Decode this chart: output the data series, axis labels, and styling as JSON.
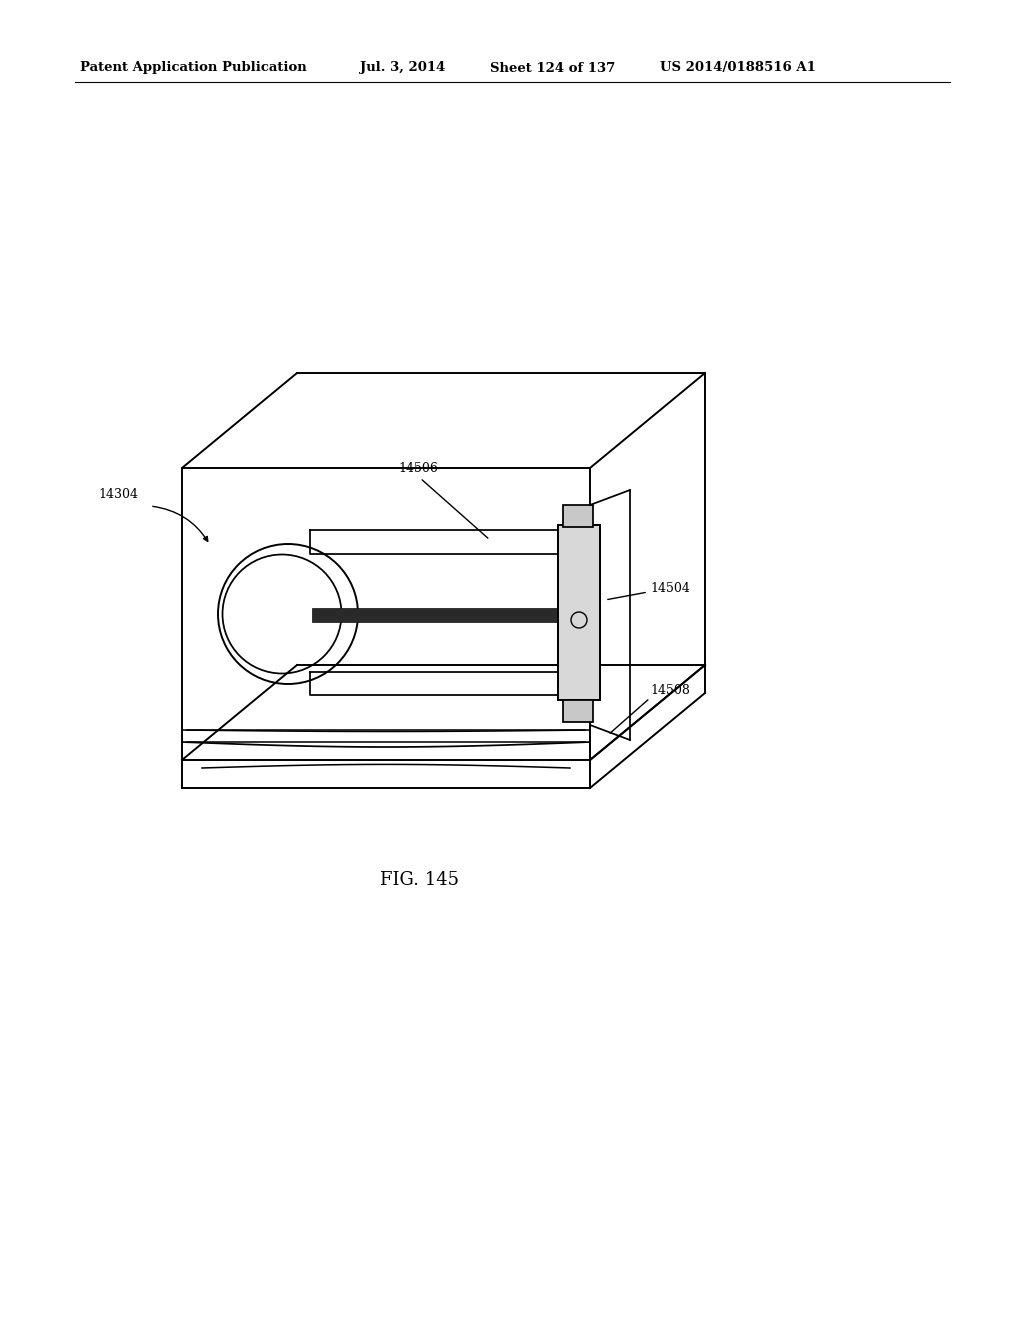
{
  "background_color": "#ffffff",
  "header_text": "Patent Application Publication",
  "header_date": "Jul. 3, 2014",
  "header_sheet": "Sheet 124 of 137",
  "header_patent": "US 2014/0188516 A1",
  "header_fontsize": 9.5,
  "figure_label": "FIG. 145",
  "figure_label_fontsize": 13,
  "line_color": "#000000",
  "line_width": 1.4,
  "label_fontsize": 9
}
